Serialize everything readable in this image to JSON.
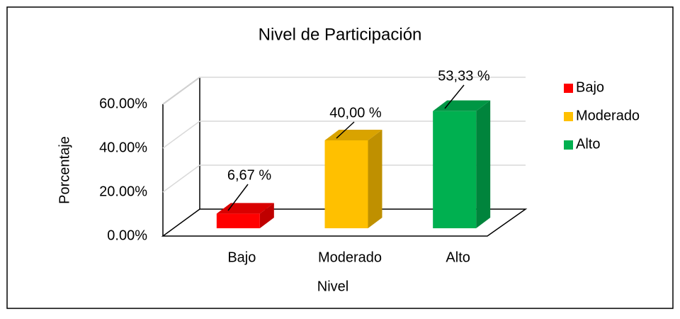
{
  "chart_data": {
    "type": "bar3d",
    "title": "Nivel de Participación",
    "x_label": "Nivel",
    "y_label": "Porcentaje",
    "categories": [
      "Bajo",
      "Moderado",
      "Alto"
    ],
    "values": [
      6.67,
      40.0,
      53.33
    ],
    "value_labels": [
      "6,67 %",
      "40,00 %",
      "53,33 %"
    ],
    "colors": [
      "#ff0000",
      "#ffc000",
      "#00b050"
    ],
    "ylim": [
      0,
      60
    ],
    "yticks": [
      {
        "value": 0,
        "label": "0.00%"
      },
      {
        "value": 20,
        "label": "20.00%"
      },
      {
        "value": 40,
        "label": "40.00%"
      },
      {
        "value": 60,
        "label": "60.00%"
      }
    ],
    "grid": true,
    "legend": "right"
  }
}
